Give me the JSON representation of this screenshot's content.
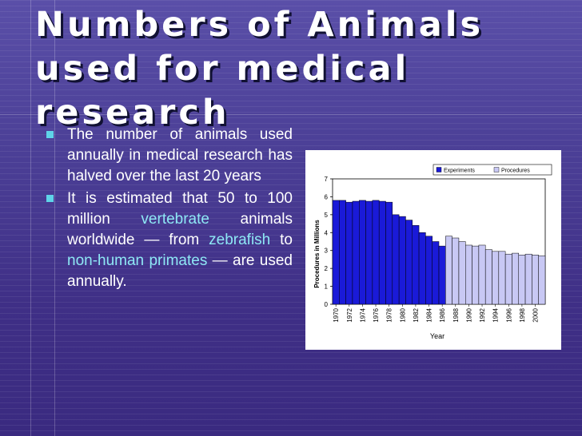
{
  "slide": {
    "title": "Numbers of Animals used for medical research",
    "bullet1": "The number of animals used annually in medical research has halved over the last 20 years",
    "bullet2": {
      "part1": "It is estimated that 50 to 100 million ",
      "link1": "vertebrate",
      "part2": " animals worldwide — from ",
      "link2": "zebrafish",
      "part3": " to ",
      "link3": "non-human primates",
      "part4": " — are used annually."
    }
  },
  "chart_data": {
    "type": "bar",
    "xlabel": "Year",
    "ylabel": "Procedures in Millions",
    "ylim": [
      0,
      7
    ],
    "yticks": [
      0,
      1,
      2,
      3,
      4,
      5,
      6,
      7
    ],
    "legend_position": "top-right",
    "tick_labels": [
      "1970",
      "1972",
      "1974",
      "1976",
      "1978",
      "1980",
      "1982",
      "1984",
      "1986",
      "1988",
      "1990",
      "1992",
      "1994",
      "1996",
      "1998",
      "2000"
    ],
    "series": [
      {
        "name": "Experiments",
        "color": "#1a1ad8",
        "x": [
          1970,
          1971,
          1972,
          1973,
          1974,
          1975,
          1976,
          1977,
          1978,
          1979,
          1980,
          1981,
          1982,
          1983,
          1984,
          1985,
          1986
        ],
        "values": [
          5.8,
          5.8,
          5.7,
          5.75,
          5.8,
          5.75,
          5.8,
          5.75,
          5.7,
          5.0,
          4.9,
          4.7,
          4.4,
          4.0,
          3.8,
          3.5,
          3.25
        ]
      },
      {
        "name": "Procedures",
        "color": "#c8c8f4",
        "x": [
          1987,
          1988,
          1989,
          1990,
          1991,
          1992,
          1993,
          1994,
          1995,
          1996,
          1997,
          1998,
          1999,
          2000,
          2001
        ],
        "values": [
          3.8,
          3.7,
          3.5,
          3.3,
          3.25,
          3.3,
          3.05,
          2.95,
          2.95,
          2.8,
          2.85,
          2.75,
          2.8,
          2.75,
          2.7
        ]
      }
    ]
  }
}
